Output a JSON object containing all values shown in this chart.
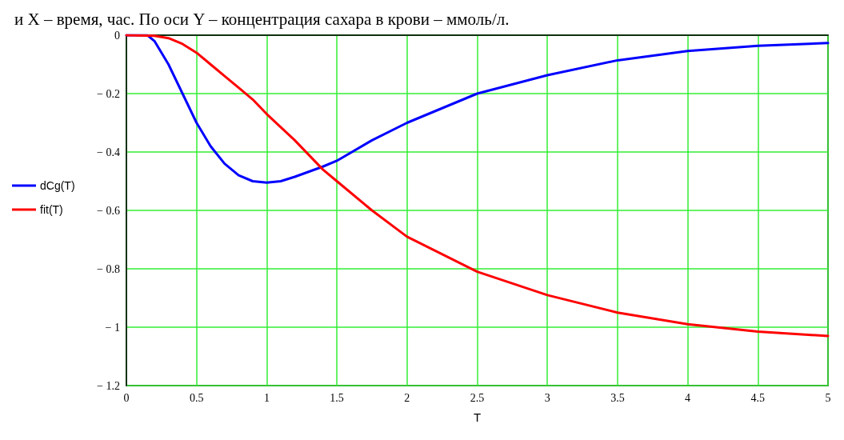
{
  "chart_data": {
    "type": "line",
    "title": "и X – время, час. По оси Y – концентрация сахара в крови – ммоль/л.",
    "xlabel": "T",
    "xlim": [
      0,
      5
    ],
    "xticks": [
      0,
      0.5,
      1,
      1.5,
      2,
      2.5,
      3,
      3.5,
      4,
      4.5,
      5
    ],
    "ylim": [
      -1.2,
      0
    ],
    "yticks": [
      -1.2,
      -1,
      -0.8,
      -0.6,
      -0.4,
      -0.2,
      0
    ],
    "grid": true,
    "legend": "left",
    "marker": "none",
    "line_style": "solid",
    "series": [
      {
        "name": "dCg(T)",
        "color": "#0000ff",
        "x": [
          0,
          0.15,
          0.2,
          0.3,
          0.4,
          0.5,
          0.6,
          0.7,
          0.8,
          0.9,
          1,
          1.1,
          1.2,
          1.4,
          1.5,
          1.75,
          2,
          2.5,
          3,
          3.5,
          4,
          4.5,
          5
        ],
        "values": [
          0,
          0,
          -0.02,
          -0.1,
          -0.2,
          -0.3,
          -0.38,
          -0.44,
          -0.48,
          -0.5,
          -0.505,
          -0.5,
          -0.485,
          -0.45,
          -0.43,
          -0.36,
          -0.3,
          -0.2,
          -0.137,
          -0.086,
          -0.054,
          -0.036,
          -0.027
        ]
      },
      {
        "name": "fit(T)",
        "color": "#ff0000",
        "x": [
          0,
          0.2,
          0.3,
          0.4,
          0.5,
          0.6,
          0.7,
          0.8,
          0.9,
          1,
          1.2,
          1.4,
          1.5,
          1.75,
          2,
          2.5,
          3,
          3.5,
          4,
          4.5,
          5
        ],
        "values": [
          0,
          -0.002,
          -0.01,
          -0.03,
          -0.06,
          -0.1,
          -0.14,
          -0.18,
          -0.22,
          -0.27,
          -0.36,
          -0.46,
          -0.5,
          -0.6,
          -0.69,
          -0.81,
          -0.89,
          -0.95,
          -0.99,
          -1.015,
          -1.03
        ]
      }
    ]
  }
}
